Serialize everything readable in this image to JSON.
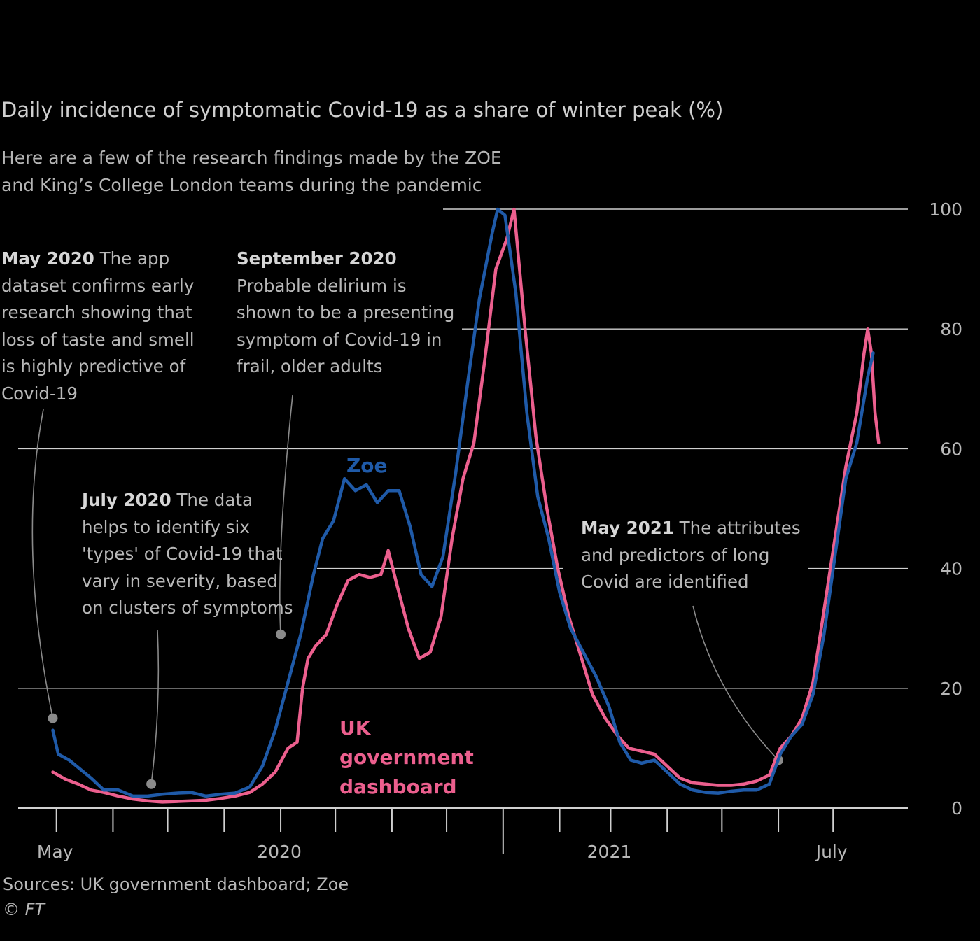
{
  "chart_data": {
    "type": "line",
    "title": "Daily incidence of symptomatic Covid-19 as a share of winter peak (%)",
    "subtitle": "Here are a few of the research findings made by the ZOE and King’s College London teams during the pandemic",
    "xlabel": "",
    "ylabel": "",
    "ylim": [
      0,
      100
    ],
    "y_ticks": [
      "0",
      "20",
      "40",
      "60",
      "80",
      "100"
    ],
    "x_tick_labels": [
      {
        "label": "May",
        "date": "2020-05-01"
      },
      {
        "label": "2020",
        "date": "2020-09-01"
      },
      {
        "label": "2021",
        "date": "2021-03-01"
      },
      {
        "label": "July",
        "date": "2021-07-01"
      }
    ],
    "x_ticks": [
      "2020-05-01",
      "2020-06-01",
      "2020-07-01",
      "2020-08-01",
      "2020-09-01",
      "2020-10-01",
      "2020-11-01",
      "2020-12-01",
      "2021-01-01",
      "2021-02-01",
      "2021-03-01",
      "2021-04-01",
      "2021-05-01",
      "2021-06-01",
      "2021-07-01"
    ],
    "series": [
      {
        "name": "Zoe",
        "color": "#1f5aa8",
        "points": [
          [
            "2020-04-29",
            13
          ],
          [
            "2020-05-02",
            9
          ],
          [
            "2020-05-08",
            8
          ],
          [
            "2020-05-14",
            6.5
          ],
          [
            "2020-05-20",
            5
          ],
          [
            "2020-05-27",
            3
          ],
          [
            "2020-06-04",
            3
          ],
          [
            "2020-06-12",
            2
          ],
          [
            "2020-06-20",
            2
          ],
          [
            "2020-06-28",
            2.3
          ],
          [
            "2020-07-06",
            2.5
          ],
          [
            "2020-07-14",
            2.6
          ],
          [
            "2020-07-22",
            2
          ],
          [
            "2020-07-30",
            2.3
          ],
          [
            "2020-08-07",
            2.5
          ],
          [
            "2020-08-15",
            3.5
          ],
          [
            "2020-08-22",
            7
          ],
          [
            "2020-08-29",
            13
          ],
          [
            "2020-09-05",
            21
          ],
          [
            "2020-09-12",
            29
          ],
          [
            "2020-09-19",
            39
          ],
          [
            "2020-09-24",
            45
          ],
          [
            "2020-09-30",
            48
          ],
          [
            "2020-10-06",
            55
          ],
          [
            "2020-10-12",
            53
          ],
          [
            "2020-10-18",
            54
          ],
          [
            "2020-10-24",
            51
          ],
          [
            "2020-10-30",
            53
          ],
          [
            "2020-11-05",
            53
          ],
          [
            "2020-11-11",
            47
          ],
          [
            "2020-11-17",
            39
          ],
          [
            "2020-11-23",
            37
          ],
          [
            "2020-11-29",
            42
          ],
          [
            "2020-12-06",
            56
          ],
          [
            "2020-12-13",
            72
          ],
          [
            "2020-12-19",
            85
          ],
          [
            "2020-12-26",
            96
          ],
          [
            "2020-12-29",
            100
          ],
          [
            "2021-01-02",
            99
          ],
          [
            "2021-01-08",
            86
          ],
          [
            "2021-01-14",
            66
          ],
          [
            "2021-01-20",
            52
          ],
          [
            "2021-01-26",
            45
          ],
          [
            "2021-02-01",
            36
          ],
          [
            "2021-02-07",
            30
          ],
          [
            "2021-02-14",
            26
          ],
          [
            "2021-02-21",
            22
          ],
          [
            "2021-02-28",
            17
          ],
          [
            "2021-03-06",
            11
          ],
          [
            "2021-03-12",
            8
          ],
          [
            "2021-03-18",
            7.5
          ],
          [
            "2021-03-25",
            8
          ],
          [
            "2021-04-01",
            6
          ],
          [
            "2021-04-08",
            4
          ],
          [
            "2021-04-15",
            3
          ],
          [
            "2021-04-22",
            2.6
          ],
          [
            "2021-04-29",
            2.5
          ],
          [
            "2021-05-06",
            2.8
          ],
          [
            "2021-05-13",
            3
          ],
          [
            "2021-05-20",
            3
          ],
          [
            "2021-05-27",
            4
          ],
          [
            "2021-06-02",
            9
          ],
          [
            "2021-06-08",
            12
          ],
          [
            "2021-06-14",
            14
          ],
          [
            "2021-06-20",
            19
          ],
          [
            "2021-06-26",
            29
          ],
          [
            "2021-07-02",
            42
          ],
          [
            "2021-07-08",
            55
          ],
          [
            "2021-07-14",
            61
          ],
          [
            "2021-07-20",
            72
          ],
          [
            "2021-07-23",
            76
          ]
        ]
      },
      {
        "name": "UK government dashboard",
        "color": "#ec5f8e",
        "points": [
          [
            "2020-04-29",
            6
          ],
          [
            "2020-05-06",
            4.8
          ],
          [
            "2020-05-13",
            4
          ],
          [
            "2020-05-20",
            3
          ],
          [
            "2020-05-27",
            2.6
          ],
          [
            "2020-06-04",
            2
          ],
          [
            "2020-06-12",
            1.5
          ],
          [
            "2020-06-20",
            1.2
          ],
          [
            "2020-06-28",
            1
          ],
          [
            "2020-07-06",
            1.1
          ],
          [
            "2020-07-14",
            1.2
          ],
          [
            "2020-07-22",
            1.3
          ],
          [
            "2020-07-30",
            1.6
          ],
          [
            "2020-08-07",
            2
          ],
          [
            "2020-08-15",
            2.6
          ],
          [
            "2020-08-22",
            4
          ],
          [
            "2020-08-29",
            6
          ],
          [
            "2020-09-05",
            10
          ],
          [
            "2020-09-10",
            11
          ],
          [
            "2020-09-13",
            20
          ],
          [
            "2020-09-16",
            25
          ],
          [
            "2020-09-20",
            27
          ],
          [
            "2020-09-26",
            29
          ],
          [
            "2020-10-02",
            34
          ],
          [
            "2020-10-08",
            38
          ],
          [
            "2020-10-14",
            39
          ],
          [
            "2020-10-20",
            38.5
          ],
          [
            "2020-10-26",
            39
          ],
          [
            "2020-10-30",
            43
          ],
          [
            "2020-11-04",
            37
          ],
          [
            "2020-11-10",
            30
          ],
          [
            "2020-11-16",
            25
          ],
          [
            "2020-11-22",
            26
          ],
          [
            "2020-11-28",
            32
          ],
          [
            "2020-12-04",
            45
          ],
          [
            "2020-12-10",
            55
          ],
          [
            "2020-12-16",
            61
          ],
          [
            "2020-12-22",
            75
          ],
          [
            "2020-12-28",
            90
          ],
          [
            "2021-01-03",
            95
          ],
          [
            "2021-01-07",
            100
          ],
          [
            "2021-01-13",
            80
          ],
          [
            "2021-01-19",
            62
          ],
          [
            "2021-01-25",
            50
          ],
          [
            "2021-01-31",
            40
          ],
          [
            "2021-02-06",
            32
          ],
          [
            "2021-02-12",
            26
          ],
          [
            "2021-02-19",
            19
          ],
          [
            "2021-02-26",
            15
          ],
          [
            "2021-03-05",
            12
          ],
          [
            "2021-03-11",
            10
          ],
          [
            "2021-03-18",
            9.5
          ],
          [
            "2021-03-25",
            9
          ],
          [
            "2021-04-01",
            7
          ],
          [
            "2021-04-08",
            5
          ],
          [
            "2021-04-15",
            4.2
          ],
          [
            "2021-04-22",
            4
          ],
          [
            "2021-04-29",
            3.8
          ],
          [
            "2021-05-06",
            3.8
          ],
          [
            "2021-05-13",
            4
          ],
          [
            "2021-05-20",
            4.5
          ],
          [
            "2021-05-27",
            5.5
          ],
          [
            "2021-06-02",
            10
          ],
          [
            "2021-06-08",
            12
          ],
          [
            "2021-06-14",
            15
          ],
          [
            "2021-06-20",
            21
          ],
          [
            "2021-06-26",
            33
          ],
          [
            "2021-07-02",
            45
          ],
          [
            "2021-07-08",
            57
          ],
          [
            "2021-07-14",
            66
          ],
          [
            "2021-07-18",
            76
          ],
          [
            "2021-07-20",
            80
          ],
          [
            "2021-07-22",
            76
          ],
          [
            "2021-07-24",
            66
          ],
          [
            "2021-07-26",
            61
          ]
        ]
      }
    ],
    "series_labels": {
      "zoe": "Zoe",
      "uk": "UK government dashboard"
    },
    "annotations": [
      {
        "id": "may2020",
        "bold": "May 2020",
        "text": " The app dataset confirms early research showing that loss of taste and smell is highly predictive of Covid-19",
        "date": "2020-04-29",
        "value": 15
      },
      {
        "id": "sep2020",
        "bold": "September 2020",
        "text": " Probable delirium is shown to be a presenting symptom of Covid-19 in frail, older adults",
        "date": "2020-09-01",
        "value": 29
      },
      {
        "id": "jul2020",
        "bold": "July 2020",
        "text": " The data helps to identify six 'types' of Covid-19 that vary in severity, based on clusters of symptoms",
        "date": "2020-06-22",
        "value": 4
      },
      {
        "id": "may2021",
        "bold": "May 2021",
        "text": " The attributes and predictors of long Covid are identified",
        "date": "2021-06-01",
        "value": 8
      }
    ],
    "grid": true
  },
  "footer": {
    "sources": "Sources: UK government dashboard; Zoe",
    "credit": "© FT"
  }
}
